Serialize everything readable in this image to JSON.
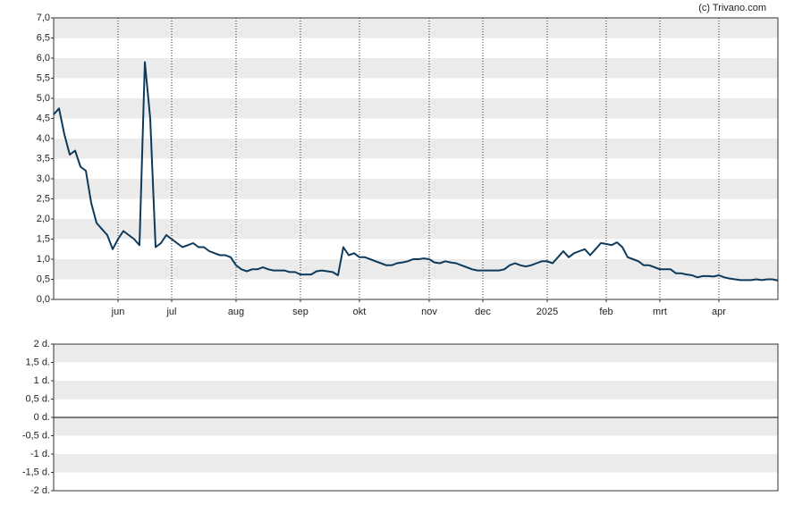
{
  "chart_data": [
    {
      "type": "line",
      "credit": "(c) Trivano.com",
      "categories": [
        null,
        null,
        null,
        null,
        null,
        null,
        null,
        null,
        null,
        null,
        null,
        null,
        "jun",
        null,
        null,
        null,
        null,
        null,
        null,
        null,
        null,
        null,
        "jul",
        null,
        null,
        null,
        null,
        null,
        null,
        null,
        null,
        null,
        null,
        null,
        "aug",
        null,
        null,
        null,
        null,
        null,
        null,
        null,
        null,
        null,
        null,
        null,
        "sep",
        null,
        null,
        null,
        null,
        null,
        null,
        null,
        null,
        null,
        null,
        "okt",
        null,
        null,
        null,
        null,
        null,
        null,
        null,
        null,
        null,
        null,
        null,
        null,
        "nov",
        null,
        null,
        null,
        null,
        null,
        null,
        null,
        null,
        null,
        "dec",
        null,
        null,
        null,
        null,
        null,
        null,
        null,
        null,
        null,
        null,
        null,
        "2025",
        null,
        null,
        null,
        null,
        null,
        null,
        null,
        null,
        null,
        null,
        "feb",
        null,
        null,
        null,
        null,
        null,
        null,
        null,
        null,
        null,
        "mrt",
        null,
        null,
        null,
        null,
        null,
        null,
        null,
        null,
        null,
        null,
        "apr",
        null,
        null,
        null,
        null,
        null,
        null,
        null,
        null,
        null,
        null,
        null
      ],
      "series": [
        {
          "color": "#0d3a5c",
          "values": [
            4.6,
            4.75,
            4.1,
            3.6,
            3.7,
            3.3,
            3.2,
            2.4,
            1.9,
            1.75,
            1.6,
            1.25,
            1.5,
            1.7,
            1.6,
            1.5,
            1.35,
            5.9,
            4.5,
            1.3,
            1.4,
            1.6,
            1.5,
            1.4,
            1.3,
            1.35,
            1.4,
            1.3,
            1.3,
            1.2,
            1.15,
            1.1,
            1.1,
            1.05,
            0.85,
            0.75,
            0.7,
            0.75,
            0.75,
            0.8,
            0.75,
            0.72,
            0.72,
            0.72,
            0.68,
            0.68,
            0.62,
            0.62,
            0.62,
            0.7,
            0.72,
            0.7,
            0.68,
            0.6,
            1.3,
            1.1,
            1.15,
            1.05,
            1.05,
            1.0,
            0.95,
            0.9,
            0.85,
            0.85,
            0.9,
            0.92,
            0.95,
            1.0,
            1.0,
            1.02,
            1.0,
            0.92,
            0.9,
            0.95,
            0.92,
            0.9,
            0.85,
            0.8,
            0.75,
            0.72,
            0.72,
            0.72,
            0.72,
            0.72,
            0.75,
            0.85,
            0.9,
            0.85,
            0.82,
            0.85,
            0.9,
            0.95,
            0.95,
            0.9,
            1.05,
            1.2,
            1.05,
            1.15,
            1.2,
            1.25,
            1.1,
            1.25,
            1.4,
            1.38,
            1.35,
            1.42,
            1.3,
            1.05,
            1.0,
            0.95,
            0.85,
            0.85,
            0.8,
            0.75,
            0.75,
            0.75,
            0.65,
            0.65,
            0.62,
            0.6,
            0.55,
            0.58,
            0.58,
            0.57,
            0.6,
            0.55,
            0.52,
            0.5,
            0.48,
            0.48,
            0.48,
            0.5,
            0.48,
            0.5,
            0.5,
            0.47
          ]
        }
      ],
      "ylim": [
        0,
        7
      ],
      "yticks": [
        {
          "value": 0,
          "label": "0,0"
        },
        {
          "value": 0.5,
          "label": "0,5"
        },
        {
          "value": 1,
          "label": "1,0"
        },
        {
          "value": 1.5,
          "label": "1,5"
        },
        {
          "value": 2,
          "label": "2,0"
        },
        {
          "value": 2.5,
          "label": "2,5"
        },
        {
          "value": 3,
          "label": "3,0"
        },
        {
          "value": 3.5,
          "label": "3,5"
        },
        {
          "value": 4,
          "label": "4,0"
        },
        {
          "value": 4.5,
          "label": "4,5"
        },
        {
          "value": 5,
          "label": "5,0"
        },
        {
          "value": 5.5,
          "label": "5,5"
        },
        {
          "value": 6,
          "label": "6,0"
        },
        {
          "value": 6.5,
          "label": "6,5"
        },
        {
          "value": 7,
          "label": "7,0"
        }
      ],
      "grid": true
    },
    {
      "type": "line",
      "ylim": [
        -2,
        2
      ],
      "yticks": [
        {
          "value": -2,
          "label": "-2 d."
        },
        {
          "value": -1.5,
          "label": "-1,5 d."
        },
        {
          "value": -1,
          "label": "-1 d."
        },
        {
          "value": -0.5,
          "label": "-0,5 d."
        },
        {
          "value": 0,
          "label": "0 d."
        },
        {
          "value": 0.5,
          "label": "0,5 d."
        },
        {
          "value": 1,
          "label": "1 d."
        },
        {
          "value": 1.5,
          "label": "1,5 d."
        },
        {
          "value": 2,
          "label": "2 d."
        }
      ],
      "grid": true
    }
  ]
}
